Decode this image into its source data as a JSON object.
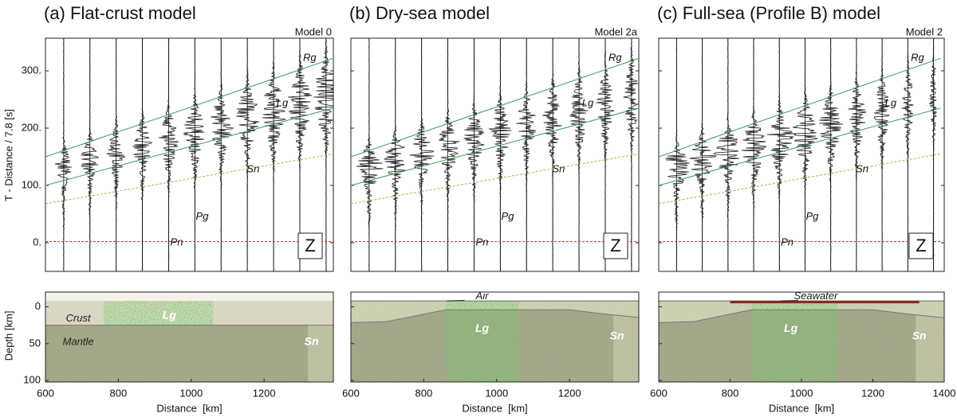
{
  "chart_data": [
    {
      "type": "seismogram",
      "title": "(a) Flat-crust model",
      "subtitle": "Model 0",
      "component": "Z",
      "ylabel": "T - Distance / 7.8 [s]",
      "phases": [
        "Rg",
        "Lg",
        "Sn",
        "Pg",
        "Pn"
      ],
      "xlabel": "Distance  [km]",
      "xlim": [
        600,
        1390
      ],
      "xticks": [
        600,
        800,
        1000,
        1200
      ],
      "ylim": [
        -50,
        357
      ],
      "yticks": [
        {
          "value": 0,
          "label": "0."
        },
        {
          "value": 100,
          "label": "100."
        },
        {
          "value": 200,
          "label": "200."
        },
        {
          "value": 300,
          "label": "300."
        }
      ],
      "section": {
        "ylabel": "Depth [km]",
        "ylim": [
          -20,
          102
        ],
        "yticks": [
          0,
          50,
          100
        ],
        "labels": [
          "Crust",
          "Mantle",
          "Lg",
          "Sn"
        ]
      }
    },
    {
      "type": "seismogram",
      "title": "(b) Dry-sea model",
      "subtitle": "Model 2a",
      "component": "Z",
      "phases": [
        "Rg",
        "Lg",
        "Sn",
        "Pg",
        "Pn"
      ],
      "xlabel": "Distance  [km]",
      "xlim": [
        600,
        1390
      ],
      "xticks": [
        600,
        800,
        1000,
        1200
      ],
      "section": {
        "labels": [
          "Air",
          "Lg",
          "Sn"
        ]
      }
    },
    {
      "type": "seismogram",
      "title": "(c) Full-sea (Profile B) model",
      "subtitle": "Model 2",
      "component": "Z",
      "phases": [
        "Rg",
        "Lg",
        "Sn",
        "Pg",
        "Pn"
      ],
      "xlabel": "Distance  [km]",
      "xlim": [
        600,
        1400
      ],
      "xticks": [
        600,
        800,
        1000,
        1200,
        1400
      ],
      "section": {
        "labels": [
          "Seawater",
          "Lg",
          "Sn"
        ]
      }
    }
  ]
}
